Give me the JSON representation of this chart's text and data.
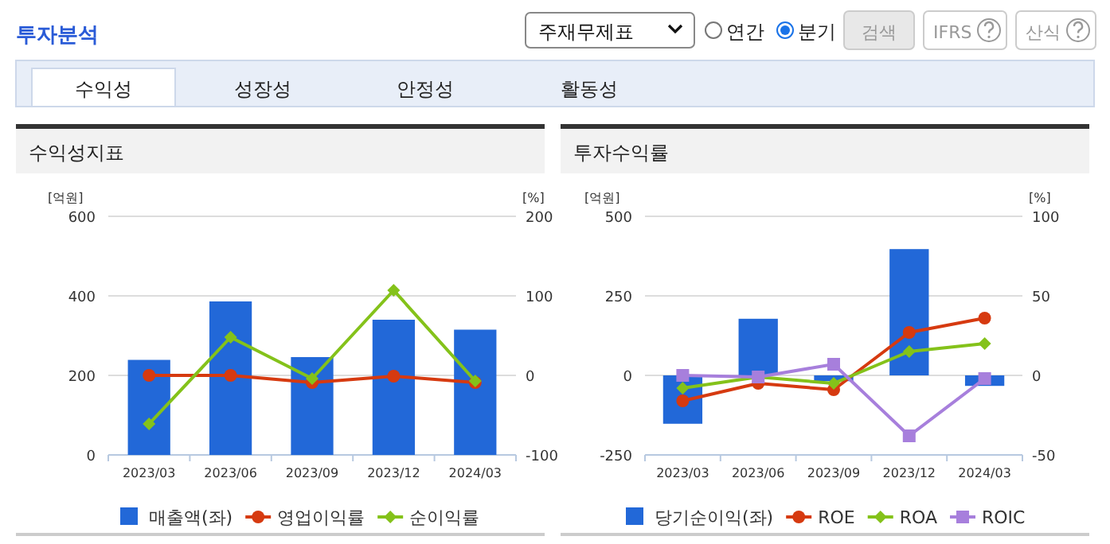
{
  "chart_data": [
    {
      "type": "bar",
      "title": "수익성지표",
      "ylabel": "[억원]",
      "y2label": "[%]",
      "annotations": [
        "투자분석",
        "주재무제표",
        "연간",
        "분기",
        "검색",
        "IFRS",
        "산식",
        "수익성",
        "성장성",
        "안정성",
        "활동성"
      ],
      "categories": [
        "2023/03",
        "2023/06",
        "2023/09",
        "2023/12",
        "2024/03"
      ],
      "series": [
        {
          "name": "매출액(좌)",
          "color": "#2268d8",
          "values": [
            239,
            386,
            246,
            340,
            315
          ]
        },
        {
          "type": "line",
          "name": "영업이익률",
          "color": "#d63a10",
          "marker": "circle",
          "axis": "y2",
          "values": [
            0,
            0,
            -9,
            -1,
            -9
          ]
        },
        {
          "type": "line",
          "name": "순이익률",
          "color": "#84c21a",
          "marker": "diamond",
          "axis": "y2",
          "values": [
            -61,
            48,
            -4,
            107,
            -7
          ]
        }
      ],
      "ylim": [
        0,
        600
      ],
      "yticks": [
        0,
        200,
        400,
        600
      ],
      "y2lim": [
        -100,
        200
      ],
      "y2ticks": [
        -100,
        0,
        100,
        200
      ],
      "grid": "y",
      "legend": "bottom"
    },
    {
      "type": "bar",
      "title": "투자수익률",
      "ylabel": "[억원]",
      "y2label": "[%]",
      "categories": [
        "2023/03",
        "2023/06",
        "2023/09",
        "2023/12",
        "2024/03"
      ],
      "series": [
        {
          "name": "당기순이익(좌)",
          "color": "#2268d8",
          "values": [
            -152,
            178,
            -18,
            397,
            -33
          ]
        },
        {
          "type": "line",
          "name": "ROE",
          "color": "#d63a10",
          "marker": "circle",
          "axis": "y2",
          "values": [
            -16,
            -5,
            -9,
            27,
            36
          ]
        },
        {
          "type": "line",
          "name": "ROA",
          "color": "#84c21a",
          "marker": "diamond",
          "axis": "y2",
          "values": [
            -8,
            -1,
            -5,
            15,
            20
          ]
        },
        {
          "type": "line",
          "name": "ROIC",
          "color": "#a77fdc",
          "marker": "square",
          "axis": "y2",
          "values": [
            0,
            -1,
            7,
            -38,
            -2
          ]
        }
      ],
      "ylim": [
        -250,
        500
      ],
      "yticks": [
        -250,
        0,
        250,
        500
      ],
      "y2lim": [
        -50,
        100
      ],
      "y2ticks": [
        -50,
        0,
        50,
        100
      ],
      "grid": "y",
      "legend": "bottom"
    }
  ]
}
